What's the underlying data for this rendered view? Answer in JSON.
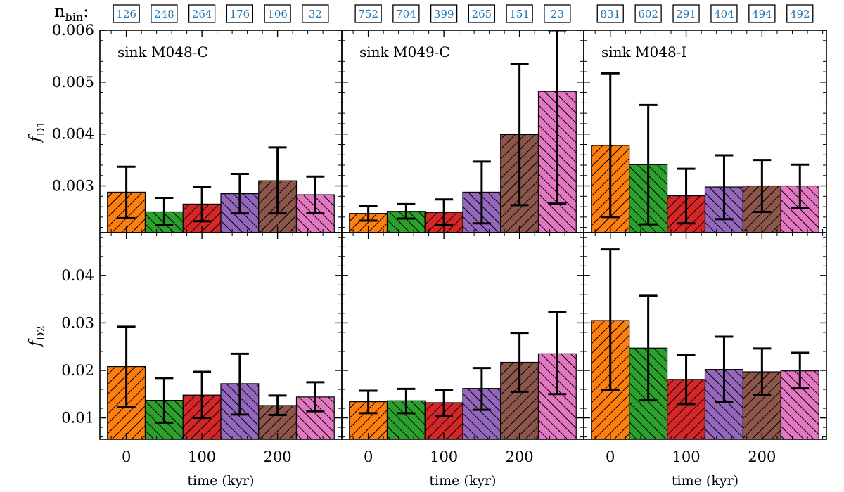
{
  "nbin_label": "n",
  "nbin_sub": "bin",
  "nbin_colon": ":",
  "colors": {
    "bars": [
      "#ff7f0e",
      "#2ca02c",
      "#d62728",
      "#9467bd",
      "#8c564b",
      "#e377c2"
    ],
    "nbin": "#1f77b4",
    "axes": "#000000"
  },
  "hatch": [
    "/",
    "\\",
    "/",
    "\\",
    "/",
    "\\"
  ],
  "chart_data": {
    "type": "bar",
    "layout": "2 rows x 3 columns, shared axes",
    "bin_width_kyr": 50,
    "x": [
      0,
      50,
      100,
      150,
      200,
      250
    ],
    "xlabel": "time (kyr)",
    "xticks": [
      0,
      100,
      200
    ],
    "xlim": [
      -35,
      285
    ],
    "rows": [
      {
        "ylabel": "f",
        "ylabel_sub": "D1",
        "ylim": [
          0.0021,
          0.006
        ],
        "yticks": [
          0.003,
          0.004,
          0.005,
          0.006
        ],
        "ytick_labels": [
          "0.003",
          "0.004",
          "0.005",
          "0.006"
        ]
      },
      {
        "ylabel": "f",
        "ylabel_sub": "D2",
        "ylim": [
          0.0055,
          0.049
        ],
        "yticks": [
          0.01,
          0.02,
          0.03,
          0.04
        ],
        "ytick_labels": [
          "0.01",
          "0.02",
          "0.03",
          "0.04"
        ]
      }
    ],
    "panels": [
      {
        "title": "sink M048-C",
        "nbin": [
          "126",
          "248",
          "264",
          "176",
          "106",
          "32"
        ],
        "fD1": {
          "values": [
            0.00288,
            0.0025,
            0.00265,
            0.00285,
            0.0031,
            0.00283
          ],
          "err_low": [
            0.00238,
            0.00225,
            0.00232,
            0.00247,
            0.00247,
            0.00248
          ],
          "err_high": [
            0.00337,
            0.00277,
            0.00298,
            0.00323,
            0.00374,
            0.00318
          ]
        },
        "fD2": {
          "values": [
            0.0208,
            0.0137,
            0.0148,
            0.0172,
            0.0126,
            0.0144
          ],
          "err_low": [
            0.0123,
            0.009,
            0.01,
            0.0107,
            0.0106,
            0.0114
          ],
          "err_high": [
            0.0292,
            0.0184,
            0.0197,
            0.0235,
            0.0147,
            0.0175
          ]
        }
      },
      {
        "title": "sink M049-C",
        "nbin": [
          "752",
          "704",
          "399",
          "265",
          "151",
          "23"
        ],
        "fD1": {
          "values": [
            0.00247,
            0.00251,
            0.00249,
            0.00288,
            0.00399,
            0.00482
          ],
          "err_low": [
            0.00233,
            0.00237,
            0.00225,
            0.00228,
            0.00263,
            0.00266
          ],
          "err_high": [
            0.00261,
            0.00265,
            0.00274,
            0.00347,
            0.00535,
            0.006
          ]
        },
        "fD2": {
          "values": [
            0.0134,
            0.0136,
            0.0132,
            0.0162,
            0.0217,
            0.0235
          ],
          "err_low": [
            0.011,
            0.011,
            0.0103,
            0.0117,
            0.0155,
            0.015
          ],
          "err_high": [
            0.0157,
            0.0161,
            0.0159,
            0.0205,
            0.0279,
            0.0322
          ]
        }
      },
      {
        "title": "sink M048-I",
        "nbin": [
          "831",
          "602",
          "291",
          "404",
          "494",
          "492"
        ],
        "fD1": {
          "values": [
            0.00378,
            0.00341,
            0.00281,
            0.00298,
            0.003,
            0.003
          ],
          "err_low": [
            0.0024,
            0.00226,
            0.00228,
            0.00236,
            0.0025,
            0.00258
          ],
          "err_high": [
            0.00517,
            0.00456,
            0.00333,
            0.00359,
            0.0035,
            0.00341
          ]
        },
        "fD2": {
          "values": [
            0.0305,
            0.0247,
            0.0181,
            0.0202,
            0.0197,
            0.0199
          ],
          "err_low": [
            0.0158,
            0.0137,
            0.0129,
            0.0133,
            0.0148,
            0.0162
          ],
          "err_high": [
            0.0455,
            0.0357,
            0.0232,
            0.0271,
            0.0246,
            0.0237
          ]
        }
      }
    ]
  }
}
